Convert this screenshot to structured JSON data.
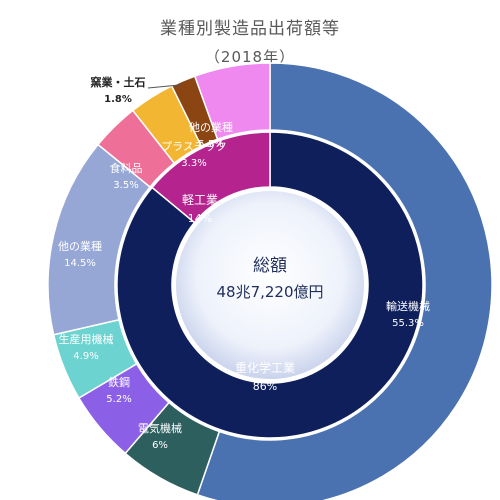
{
  "chart_data": {
    "type": "pie",
    "title": "業種別製造品出荷額等",
    "subtitle": "（2018年）",
    "center": {
      "label": "総額",
      "value": "48兆7,220億円"
    },
    "inner_ring": [
      {
        "name": "重化学工業",
        "value": "86%",
        "pct": 86,
        "color": "#0f1f5c"
      },
      {
        "name": "軽工業",
        "value": "14%",
        "pct": 14,
        "color": "#b5248e"
      }
    ],
    "outer_ring": [
      {
        "name": "輸送機械",
        "value": "55.3%",
        "pct": 55.3,
        "color": "#4a72b0"
      },
      {
        "name": "電気機械",
        "value": "6%",
        "pct": 6,
        "color": "#2e5f5f"
      },
      {
        "name": "鉄鋼",
        "value": "5.2%",
        "pct": 5.2,
        "color": "#8c60e6"
      },
      {
        "name": "生産用機械",
        "value": "4.9%",
        "pct": 4.9,
        "color": "#6dd3d0"
      },
      {
        "name": "他の業種",
        "value": "14.5%",
        "pct": 14.5,
        "color": "#96a7d6"
      },
      {
        "name": "食料品",
        "value": "3.5%",
        "pct": 3.5,
        "color": "#ee6f98"
      },
      {
        "name": "プラスチック",
        "value": "3.3%",
        "pct": 3.3,
        "color": "#f2b632"
      },
      {
        "name": "窯業・土石",
        "value": "1.8%",
        "pct": 1.8,
        "color": "#8b4513"
      },
      {
        "name": "他の業種",
        "value": "5.5%",
        "pct": 5.5,
        "color": "#ef88ef"
      }
    ]
  }
}
